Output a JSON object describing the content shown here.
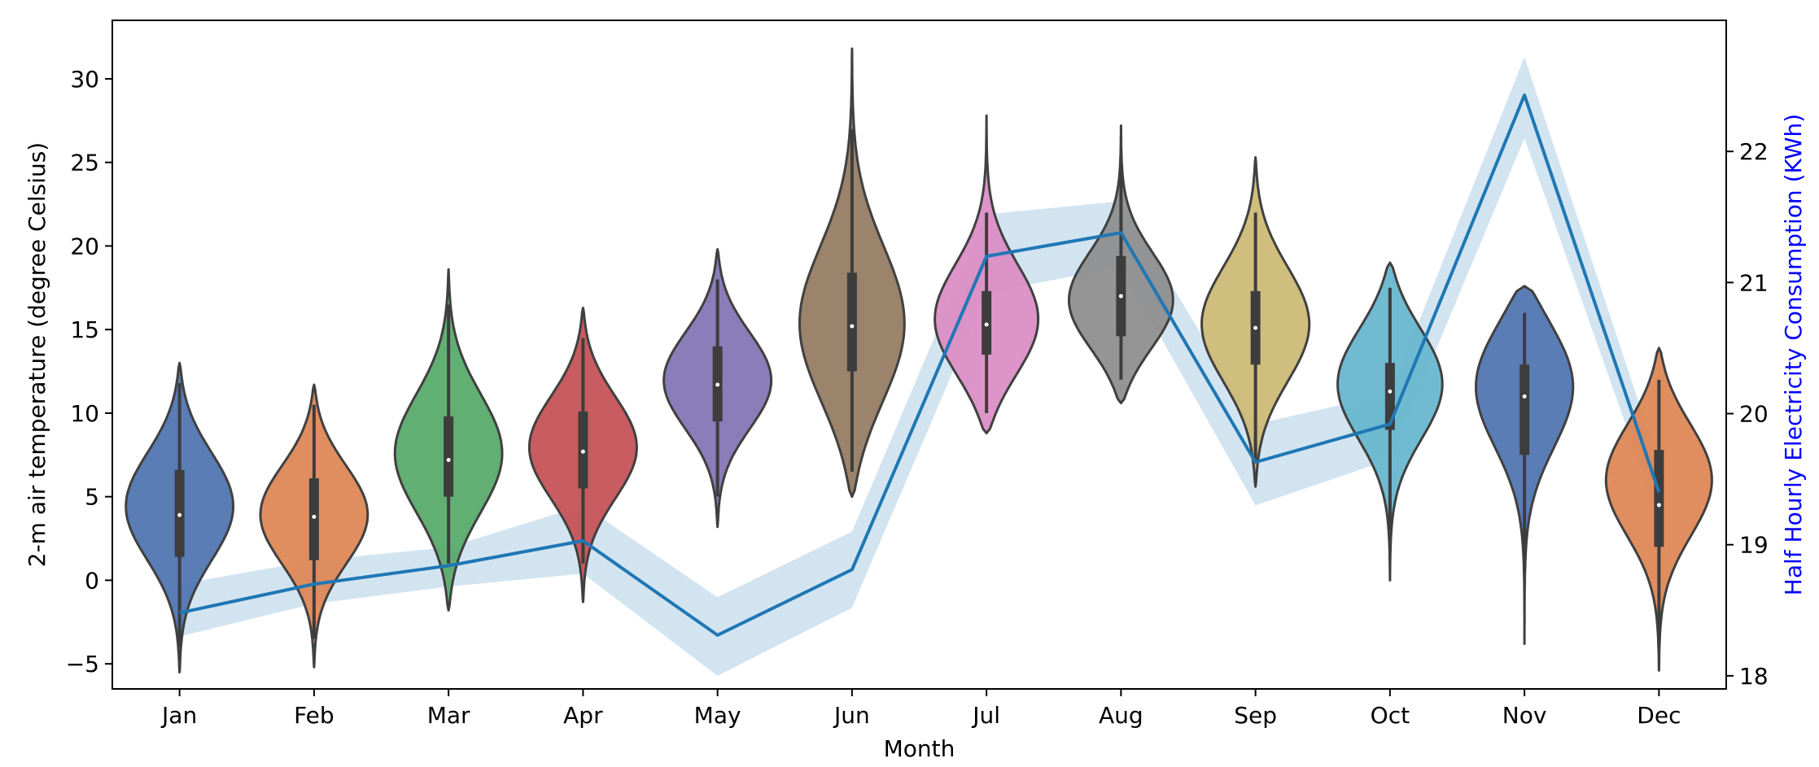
{
  "chart_data": {
    "type": "violin",
    "title": "",
    "xlabel": "Month",
    "ylabel": "2-m air temperature (degree Celsius)",
    "y2label": "Half Hourly Electricity Consumption (KWh)",
    "y2label_color": "#0000ff",
    "categories": [
      "Jan",
      "Feb",
      "Mar",
      "Apr",
      "May",
      "Jun",
      "Jul",
      "Aug",
      "Sep",
      "Oct",
      "Nov",
      "Dec"
    ],
    "ylim": [
      -6.5,
      33.5
    ],
    "y2lim": [
      17.9,
      23.0
    ],
    "yticks": [
      -5,
      0,
      5,
      10,
      15,
      20,
      25,
      30
    ],
    "y2ticks": [
      18,
      19,
      20,
      21,
      22
    ],
    "violins": [
      {
        "month": "Jan",
        "color": "#4c72b0",
        "min": -5.5,
        "max": 13.0,
        "q1": 1.4,
        "median": 3.9,
        "q3": 6.6,
        "whisker_low": -4.0,
        "whisker_high": 11.8,
        "mode": 4.5
      },
      {
        "month": "Feb",
        "color": "#dd8452",
        "min": -5.2,
        "max": 11.7,
        "q1": 1.2,
        "median": 3.8,
        "q3": 6.1,
        "whisker_low": -3.5,
        "whisker_high": 10.5,
        "mode": 4.0
      },
      {
        "month": "Mar",
        "color": "#55a868",
        "min": -1.8,
        "max": 18.6,
        "q1": 5.0,
        "median": 7.2,
        "q3": 9.8,
        "whisker_low": 1.0,
        "whisker_high": 16.5,
        "mode": 7.5
      },
      {
        "month": "Apr",
        "color": "#c44e52",
        "min": -1.3,
        "max": 16.3,
        "q1": 5.5,
        "median": 7.7,
        "q3": 10.1,
        "whisker_low": 1.0,
        "whisker_high": 14.5,
        "mode": 8.0
      },
      {
        "month": "May",
        "color": "#8172b3",
        "min": 3.2,
        "max": 19.8,
        "q1": 9.5,
        "median": 11.7,
        "q3": 14.0,
        "whisker_low": 5.0,
        "whisker_high": 18.0,
        "mode": 12.0
      },
      {
        "month": "Jun",
        "color": "#937860",
        "min": 5.0,
        "max": 31.8,
        "q1": 12.5,
        "median": 15.2,
        "q3": 18.4,
        "whisker_low": 6.5,
        "whisker_high": 27.0,
        "mode": 15.0
      },
      {
        "month": "Jul",
        "color": "#da8bc3",
        "min": 8.8,
        "max": 27.8,
        "q1": 13.5,
        "median": 15.3,
        "q3": 17.3,
        "whisker_low": 10.0,
        "whisker_high": 22.0,
        "mode": 15.3
      },
      {
        "month": "Aug",
        "color": "#8c8c8c",
        "min": 10.6,
        "max": 27.2,
        "q1": 14.6,
        "median": 17.0,
        "q3": 19.4,
        "whisker_low": 12.0,
        "whisker_high": 25.0,
        "mode": 16.5
      },
      {
        "month": "Sep",
        "color": "#ccb974",
        "min": 5.6,
        "max": 25.3,
        "q1": 12.9,
        "median": 15.1,
        "q3": 17.3,
        "whisker_low": 7.0,
        "whisker_high": 22.0,
        "mode": 15.3
      },
      {
        "month": "Oct",
        "color": "#64b5cd",
        "min": 0.0,
        "max": 19.0,
        "q1": 9.0,
        "median": 11.3,
        "q3": 13.0,
        "whisker_low": 3.0,
        "whisker_high": 17.5,
        "mode": 12.0
      },
      {
        "month": "Nov",
        "color": "#4c72b0",
        "min": -3.8,
        "max": 17.6,
        "q1": 7.5,
        "median": 11.0,
        "q3": 12.9,
        "whisker_low": 0.5,
        "whisker_high": 16.0,
        "mode": 12.2
      },
      {
        "month": "Dec",
        "color": "#dd8452",
        "min": -5.4,
        "max": 13.9,
        "q1": 2.0,
        "median": 4.5,
        "q3": 7.8,
        "whisker_low": -4.0,
        "whisker_high": 12.0,
        "mode": 6.2
      }
    ],
    "consumption": {
      "name": "Half Hourly Electricity Consumption",
      "color": "#1f77b4",
      "band_color": "#aecde6",
      "values": [
        18.48,
        18.7,
        18.84,
        19.03,
        18.31,
        18.81,
        21.2,
        21.38,
        19.63,
        19.92,
        22.43,
        19.4
      ],
      "lower": [
        18.3,
        18.55,
        18.68,
        18.78,
        18.0,
        18.52,
        20.92,
        21.12,
        19.3,
        19.65,
        22.1,
        19.2
      ],
      "upper": [
        18.7,
        18.88,
        18.98,
        19.3,
        18.6,
        19.1,
        21.52,
        21.62,
        19.92,
        20.15,
        22.72,
        19.62
      ]
    }
  }
}
